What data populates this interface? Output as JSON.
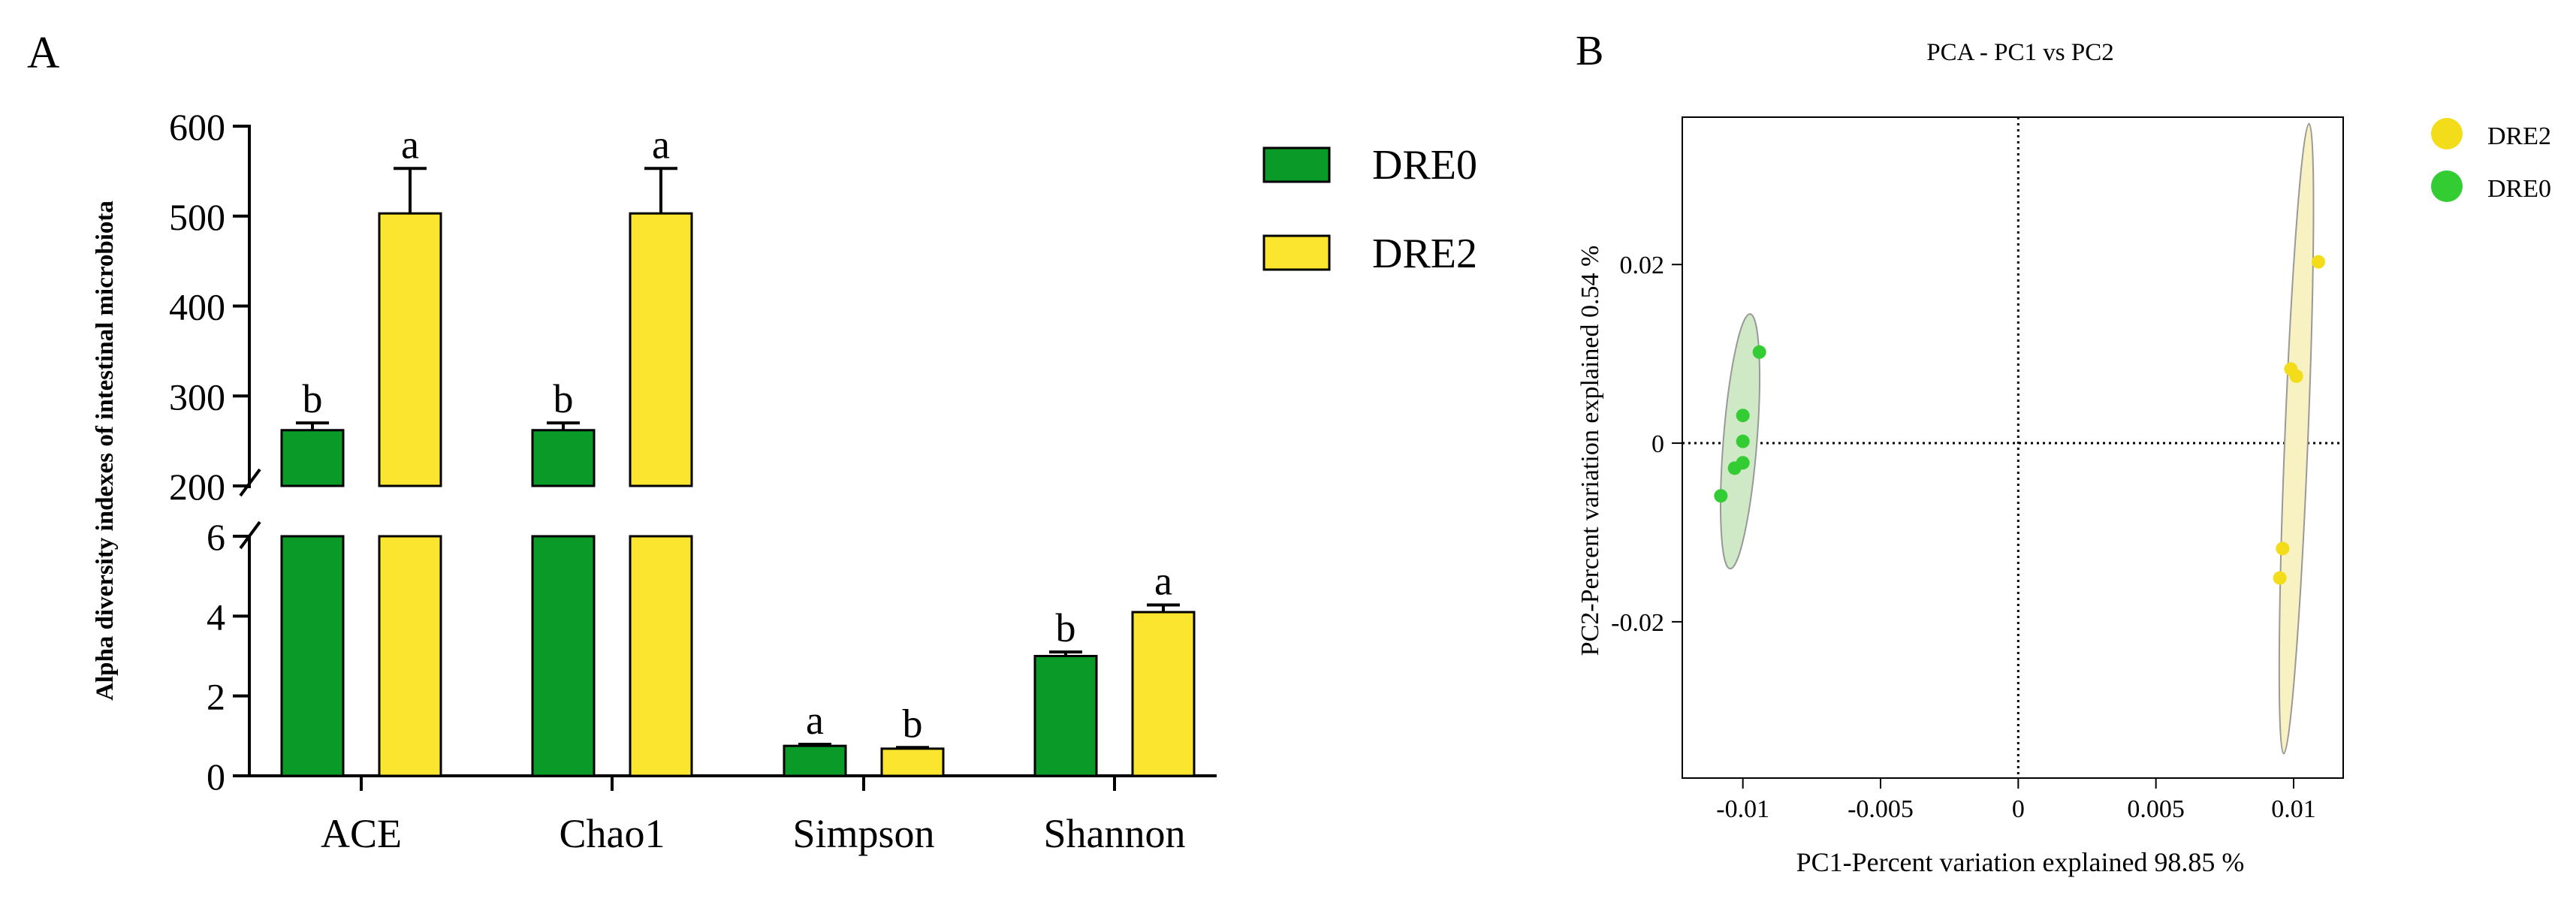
{
  "colors": {
    "dre0_bar": "#0a9a28",
    "dre2_bar": "#fbe52e",
    "dre0_point": "#33cc33",
    "dre2_point": "#f3dd1a",
    "dre0_ellipse_fill": "#cfe8c6",
    "dre2_ellipse_fill": "#f8f1c2",
    "axis": "#000000"
  },
  "chart_data": [
    {
      "panel_label": "A",
      "type": "bar",
      "ylabel": "Alpha diversity indexes of intestinal microbiota",
      "categories": [
        "ACE",
        "Chao1",
        "Simpson",
        "Shannon"
      ],
      "series": [
        {
          "name": "DRE0",
          "values": [
            262,
            262,
            0.75,
            3.0
          ],
          "errors": [
            8,
            8,
            0.04,
            0.1
          ],
          "letters": [
            "b",
            "b",
            "a",
            "b"
          ]
        },
        {
          "name": "DRE2",
          "values": [
            503,
            503,
            0.68,
            4.1
          ],
          "errors": [
            50,
            50,
            0.03,
            0.18
          ],
          "letters": [
            "a",
            "a",
            "b",
            "a"
          ]
        }
      ],
      "y_axis_break": {
        "lower": {
          "range": [
            0,
            6
          ],
          "ticks": [
            0,
            2,
            4,
            6
          ]
        },
        "upper": {
          "range": [
            200,
            600
          ],
          "ticks": [
            200,
            300,
            400,
            500,
            600
          ]
        }
      },
      "legend": [
        "DRE0",
        "DRE2"
      ],
      "legend_placement": "top-right"
    },
    {
      "panel_label": "B",
      "type": "scatter",
      "title": "PCA - PC1 vs PC2",
      "xlabel": "PC1-Percent variation explained 98.85 %",
      "ylabel": "PC2-Percent variation explained 0.54 %",
      "xlim": [
        -0.0122,
        0.0118
      ],
      "ylim": [
        -0.0375,
        0.0365
      ],
      "xticks": [
        -0.01,
        -0.005,
        0,
        0.005,
        0.01
      ],
      "xtick_labels": [
        "-0.01",
        "-0.005",
        "0",
        "0.005",
        "0.01"
      ],
      "yticks": [
        -0.02,
        0,
        0.02
      ],
      "ytick_labels": [
        "-0.02",
        "0",
        "0.02"
      ],
      "series": [
        {
          "name": "DRE2",
          "points": [
            [
              0.0109,
              0.0203
            ],
            [
              0.0099,
              0.0083
            ],
            [
              0.0101,
              0.0075
            ],
            [
              0.0096,
              -0.0118
            ],
            [
              0.0095,
              -0.0151
            ]
          ]
        },
        {
          "name": "DRE0",
          "points": [
            [
              -0.0094,
              0.0102
            ],
            [
              -0.01,
              0.0031
            ],
            [
              -0.01,
              0.0002
            ],
            [
              -0.01,
              -0.0022
            ],
            [
              -0.0103,
              -0.0028
            ],
            [
              -0.0108,
              -0.0059
            ]
          ]
        }
      ],
      "ellipses": [
        {
          "group": "DRE2",
          "center": [
            0.0101,
            0.0005
          ],
          "semi_major": 0.0353,
          "semi_minor": 0.00042,
          "rotation_deg": -87.7
        },
        {
          "group": "DRE0",
          "center": [
            -0.0101,
            0.0002
          ],
          "semi_major": 0.0143,
          "semi_minor": 0.00061,
          "rotation_deg": -85.5
        }
      ],
      "reference_lines": {
        "x": 0,
        "y": 0,
        "style": "dotted"
      },
      "legend": [
        "DRE2",
        "DRE0"
      ],
      "legend_placement": "top-right outside"
    }
  ]
}
